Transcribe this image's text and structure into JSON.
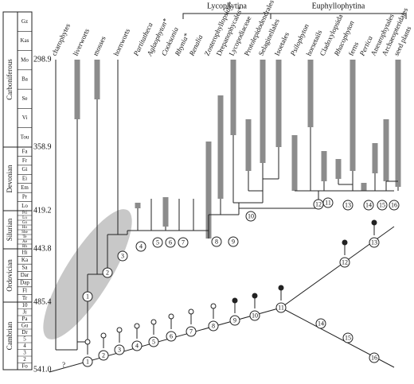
{
  "clades": [
    "Lycophytina",
    "Euphyllophytina"
  ],
  "timescale": {
    "periods": [
      {
        "name": "Carboniferous",
        "stages": [
          "Gz",
          "Kas",
          "Mo",
          "Ba",
          "Se",
          "Vi",
          "Tou"
        ]
      },
      {
        "name": "Devonian",
        "stages": [
          "Fa",
          "Fr",
          "Gi",
          "Ei",
          "Em",
          "Pr",
          "Lo"
        ]
      },
      {
        "name": "Silurian",
        "stages": [
          "Pri",
          "Lu",
          "Go",
          "Ho",
          "She",
          "Te",
          "Ae",
          "Rh"
        ]
      },
      {
        "name": "Ordovician",
        "stages": [
          "Hi",
          "Ka",
          "Sa",
          "Dar",
          "Dap",
          "Fl",
          "Tr"
        ]
      },
      {
        "name": "Cambrian",
        "stages": [
          "10",
          "Ji",
          "Pa",
          "Gu",
          "Dr",
          "5",
          "4",
          "3",
          "2",
          "Fo"
        ]
      }
    ],
    "ages": [
      "298.9",
      "358.9",
      "419.2",
      "443.8",
      "485.4",
      "541.0"
    ]
  },
  "taxa": [
    "charophytes",
    "liverworts",
    "mosses",
    "hornworts",
    "Partitatheca",
    "Aglaophyton*",
    "Cooksonia",
    "Rhynia*",
    "Renalia",
    "Zosterophyllopsida*",
    "Drepanophycales*",
    "Lycopodiaceae",
    "Protolepidodendrales",
    "Selaginellales",
    "Isoetales",
    "Psilophyton",
    "horsetails",
    "Cladoxylopsida",
    "Rhacophyton",
    "ferns",
    "Pertica",
    "Aneurophytales",
    "Archaeopteridales",
    "seed plants"
  ],
  "tree_nodes": [
    "1",
    "2",
    "3",
    "4",
    "5",
    "6",
    "7",
    "8",
    "9",
    "10",
    "11",
    "12",
    "13",
    "14",
    "15",
    "16"
  ],
  "diagonal_nodes": [
    "1",
    "2",
    "3",
    "4",
    "5",
    "6",
    "7",
    "8",
    "9",
    "10",
    "11",
    "12",
    "13",
    "14",
    "15",
    "16"
  ],
  "unknown": "?"
}
